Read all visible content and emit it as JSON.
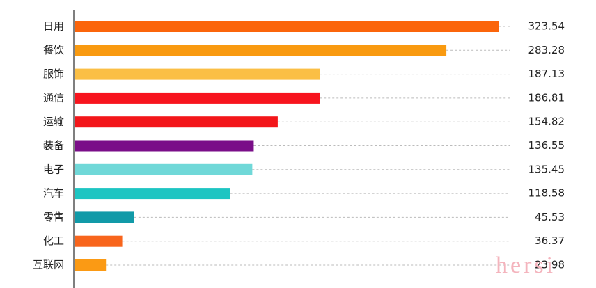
{
  "chart_data": {
    "type": "bar",
    "orientation": "horizontal",
    "categories": [
      "日用",
      "餐饮",
      "服饰",
      "通信",
      "运输",
      "装备",
      "电子",
      "汽车",
      "零售",
      "化工",
      "互联网"
    ],
    "values": [
      323.54,
      283.28,
      187.13,
      186.81,
      154.82,
      136.55,
      135.45,
      118.58,
      45.53,
      36.37,
      23.98
    ],
    "colors": [
      "#fb650b",
      "#f99a10",
      "#fbbf45",
      "#f7141e",
      "#f3161a",
      "#7a0e88",
      "#70d8d8",
      "#1dc5c2",
      "#119aa8",
      "#f8651c",
      "#fb9a14"
    ],
    "watermark": "hersi"
  }
}
